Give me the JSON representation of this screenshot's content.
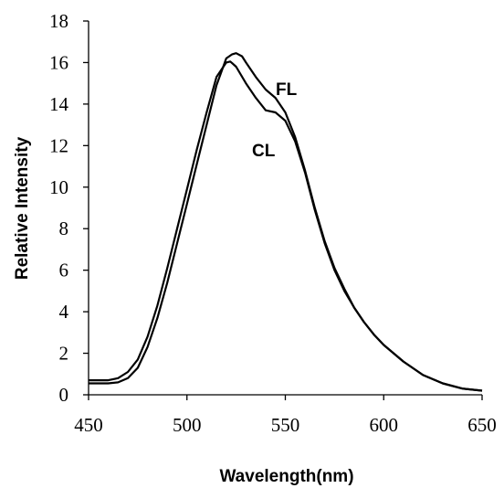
{
  "chart_data": {
    "type": "line",
    "title": "",
    "xlabel": "Wavelength(nm)",
    "ylabel": "Relative Intensity",
    "xlim": [
      450,
      650
    ],
    "ylim": [
      0,
      18
    ],
    "xticks": [
      450,
      500,
      550,
      600,
      650
    ],
    "yticks": [
      0,
      2,
      4,
      6,
      8,
      10,
      12,
      14,
      16,
      18
    ],
    "grid": false,
    "series": [
      {
        "name": "FL",
        "x": [
          450,
          460,
          465,
          470,
          475,
          480,
          485,
          490,
          495,
          500,
          505,
          510,
          515,
          520,
          523,
          525,
          528,
          530,
          535,
          540,
          545,
          550,
          555,
          560,
          565,
          570,
          575,
          580,
          585,
          590,
          595,
          600,
          610,
          620,
          630,
          640,
          650
        ],
        "y": [
          0.55,
          0.55,
          0.6,
          0.8,
          1.3,
          2.3,
          3.7,
          5.4,
          7.3,
          9.2,
          11.1,
          13.0,
          14.9,
          16.2,
          16.4,
          16.45,
          16.3,
          16.0,
          15.3,
          14.7,
          14.3,
          13.6,
          12.4,
          10.8,
          9.0,
          7.4,
          6.1,
          5.1,
          4.2,
          3.5,
          2.9,
          2.4,
          1.6,
          0.95,
          0.55,
          0.3,
          0.2
        ]
      },
      {
        "name": "CL",
        "x": [
          450,
          460,
          465,
          470,
          475,
          480,
          485,
          490,
          495,
          500,
          505,
          510,
          515,
          520,
          522,
          525,
          530,
          535,
          540,
          545,
          550,
          555,
          560,
          565,
          570,
          575,
          580,
          585,
          590,
          595,
          600,
          610,
          620,
          630,
          640,
          650
        ],
        "y": [
          0.7,
          0.7,
          0.8,
          1.1,
          1.7,
          2.8,
          4.3,
          6.1,
          8.0,
          9.9,
          11.8,
          13.6,
          15.3,
          16.0,
          16.05,
          15.8,
          15.0,
          14.3,
          13.7,
          13.6,
          13.2,
          12.2,
          10.7,
          8.9,
          7.3,
          6.0,
          5.0,
          4.2,
          3.5,
          2.9,
          2.4,
          1.6,
          0.95,
          0.55,
          0.3,
          0.2
        ]
      }
    ]
  }
}
